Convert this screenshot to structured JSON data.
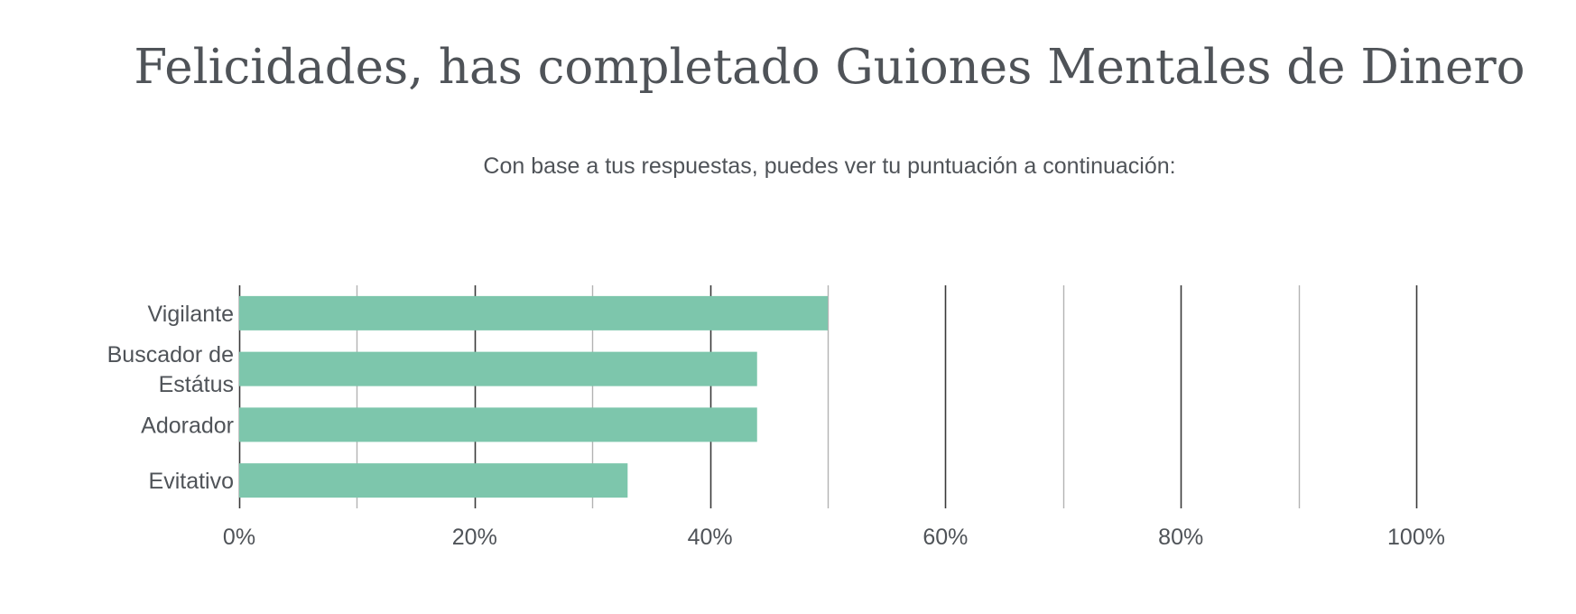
{
  "header": {
    "title": "Felicidades, has completado Guiones Mentales de Dinero",
    "subtitle": "Con base a tus respuestas, puedes ver tu puntuación a continuación:"
  },
  "colors": {
    "bar": "#7dc6ac",
    "major_grid": "#3a3a3a",
    "minor_grid": "#b3b3b3",
    "text": "#4f5358"
  },
  "chart_data": {
    "type": "bar",
    "orientation": "horizontal",
    "title": "",
    "xlabel": "",
    "ylabel": "",
    "categories": [
      [
        "Vigilante"
      ],
      [
        "Buscador de",
        "Estátus"
      ],
      [
        "Adorador"
      ],
      [
        "Evitativo"
      ]
    ],
    "values": [
      50,
      44,
      44,
      33
    ],
    "xlim": [
      0,
      100
    ],
    "x_ticks": [
      "0%",
      "20%",
      "40%",
      "60%",
      "80%",
      "100%"
    ],
    "grid": true,
    "legend": "none"
  }
}
